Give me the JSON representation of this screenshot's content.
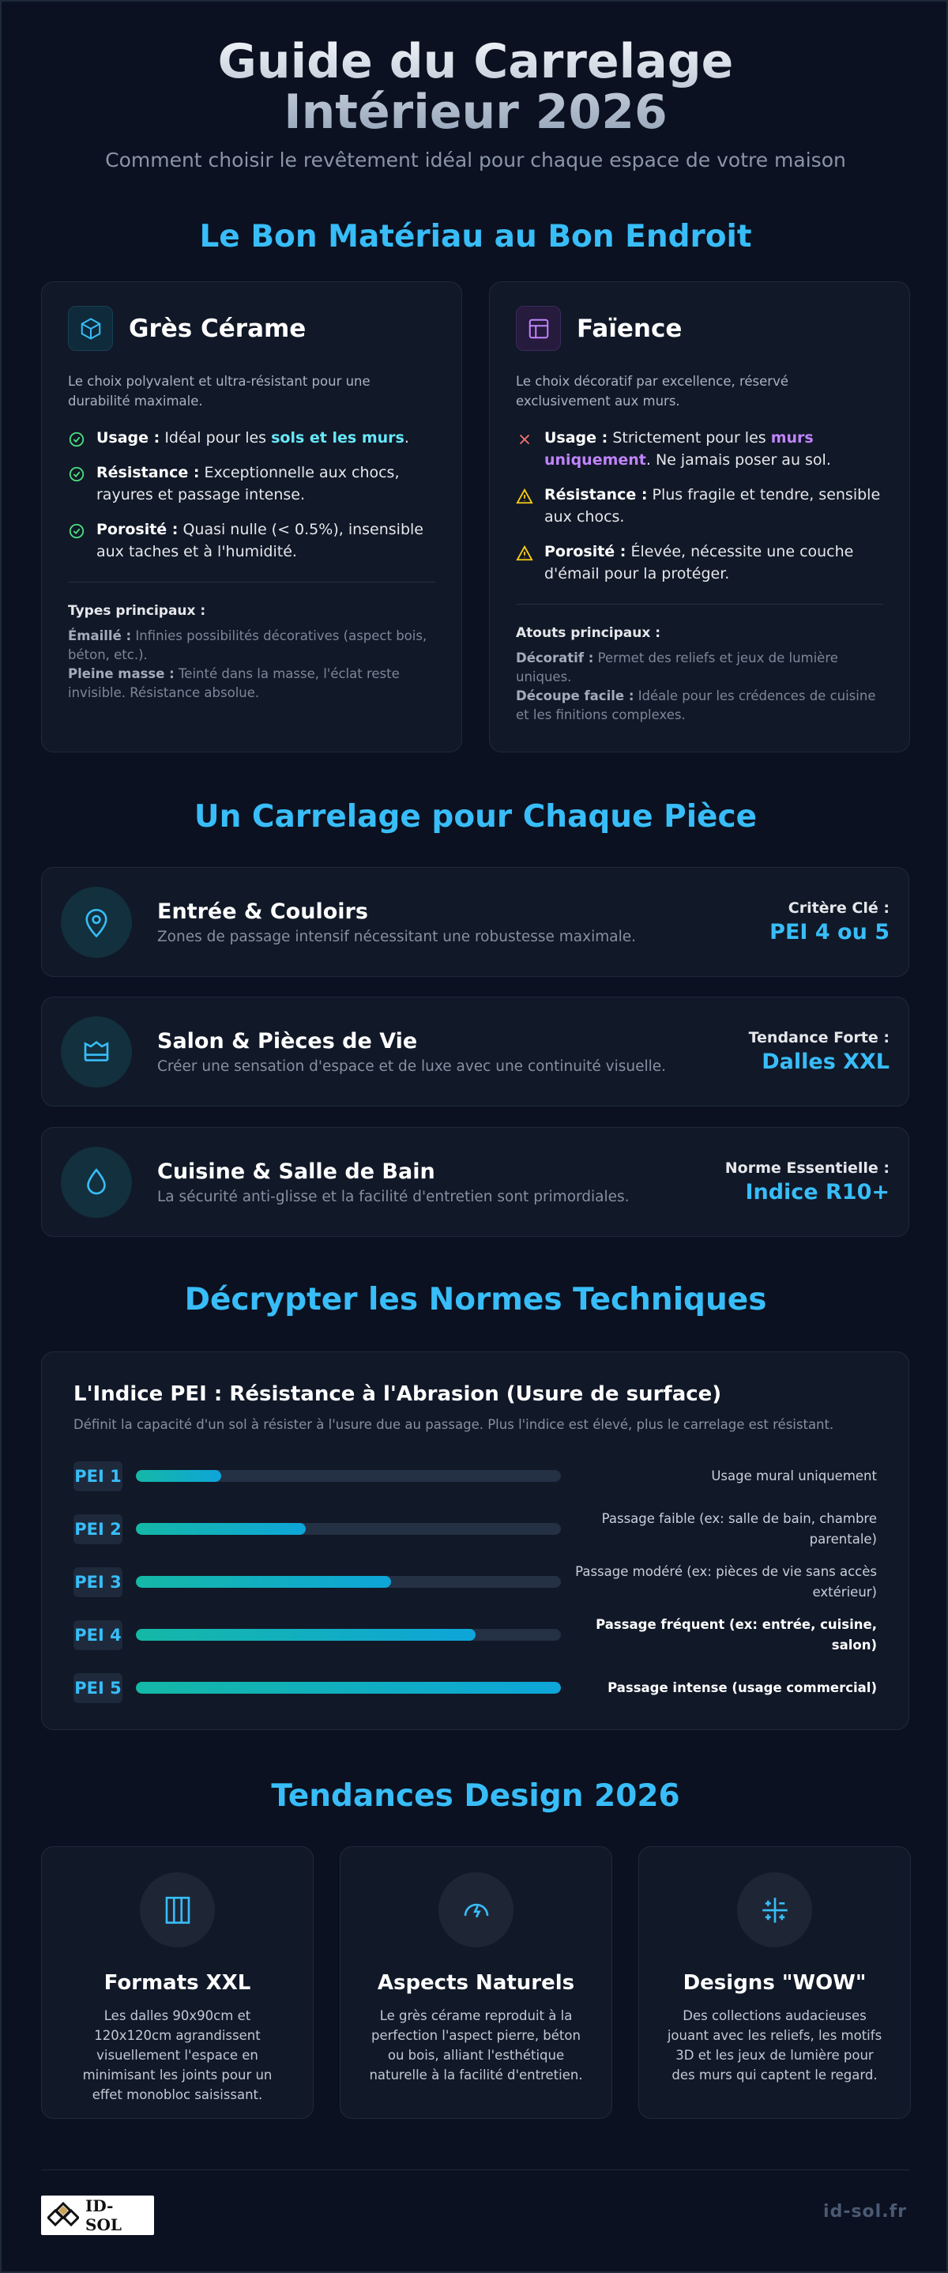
{
  "header": {
    "title": "Guide du Carrelage Intérieur 2026",
    "subtitle": "Comment choisir le revêtement idéal pour chaque espace de votre maison"
  },
  "materials": {
    "heading": "Le Bon Matériau au Bon Endroit",
    "cards": [
      {
        "title": "Grès Cérame",
        "intro": "Le choix polyvalent et ultra-résistant pour une durabilité maximale.",
        "items": [
          {
            "label": "Usage :",
            "text": "Idéal pour les ",
            "highlight": "sols et les murs",
            "after": "."
          },
          {
            "label": "Résistance :",
            "text": "Exceptionnelle aux chocs, rayures et passage intense."
          },
          {
            "label": "Porosité :",
            "text": "Quasi nulle (< 0.5%), insensible aux taches et à l'humidité."
          }
        ],
        "sub_title": "Types principaux :",
        "types": [
          {
            "label": "Émaillé :",
            "text": "Infinies possibilités décoratives (aspect bois, béton, etc.)."
          },
          {
            "label": "Pleine masse :",
            "text": "Teinté dans la masse, l'éclat reste invisible. Résistance absolue."
          }
        ]
      },
      {
        "title": "Faïence",
        "intro": "Le choix décoratif par excellence, réservé exclusivement aux murs.",
        "items": [
          {
            "label": "Usage :",
            "text": "Strictement pour les ",
            "highlight": "murs uniquement",
            "after": ". Ne jamais poser au sol."
          },
          {
            "label": "Résistance :",
            "text": "Plus fragile et tendre, sensible aux chocs."
          },
          {
            "label": "Porosité :",
            "text": "Élevée, nécessite une couche d'émail pour la protéger."
          }
        ],
        "sub_title": "Atouts principaux :",
        "types": [
          {
            "label": "Décoratif :",
            "text": "Permet des reliefs et jeux de lumière uniques."
          },
          {
            "label": "Découpe facile :",
            "text": "Idéale pour les crédences de cuisine et les finitions complexes."
          }
        ]
      }
    ]
  },
  "rooms": {
    "heading": "Un Carrelage pour Chaque Pièce",
    "items": [
      {
        "name": "Entrée & Couloirs",
        "desc": "Zones de passage intensif nécessitant une robustesse maximale.",
        "key_label": "Critère Clé :",
        "key_value": "PEI 4 ou 5"
      },
      {
        "name": "Salon & Pièces de Vie",
        "desc": "Créer une sensation d'espace et de luxe avec une continuité visuelle.",
        "key_label": "Tendance Forte :",
        "key_value": "Dalles XXL"
      },
      {
        "name": "Cuisine & Salle de Bain",
        "desc": "La sécurité anti-glisse et la facilité d'entretien sont primordiales.",
        "key_label": "Norme Essentielle :",
        "key_value": "Indice R10+"
      }
    ]
  },
  "norms": {
    "heading": "Décrypter les Normes Techniques",
    "title": "L'Indice PEI : Résistance à l'Abrasion (Usure de surface)",
    "desc": "Définit la capacité d'un sol à résister à l'usure due au passage. Plus l'indice est élevé, plus le carrelage est résistant.",
    "levels": [
      {
        "label": "PEI 1",
        "usage": "Usage mural uniquement"
      },
      {
        "label": "PEI 2",
        "usage": "Passage faible (ex: salle de bain, chambre parentale)"
      },
      {
        "label": "PEI 3",
        "usage": "Passage modéré (ex: pièces de vie sans accès extérieur)"
      },
      {
        "label": "PEI 4",
        "usage": "Passage fréquent (ex: entrée, cuisine, salon)"
      },
      {
        "label": "PEI 5",
        "usage": "Passage intense (usage commercial)"
      }
    ]
  },
  "trends": {
    "heading": "Tendances Design 2026",
    "items": [
      {
        "title": "Formats XXL",
        "text": "Les dalles 90x90cm et 120x120cm agrandissent visuellement l'espace en minimisant les joints pour un effet monobloc saisissant."
      },
      {
        "title": "Aspects Naturels",
        "text": "Le grès cérame reproduit à la perfection l'aspect pierre, béton ou bois, alliant l'esthétique naturelle à la facilité d'entretien."
      },
      {
        "title": "Designs \"WOW\"",
        "text": "Des collections audacieuses jouant avec les reliefs, les motifs 3D et les jeux de lumière pour des murs qui captent le regard."
      }
    ]
  },
  "footer": {
    "logo": "ID-SOL",
    "site": "id-sol.fr"
  }
}
